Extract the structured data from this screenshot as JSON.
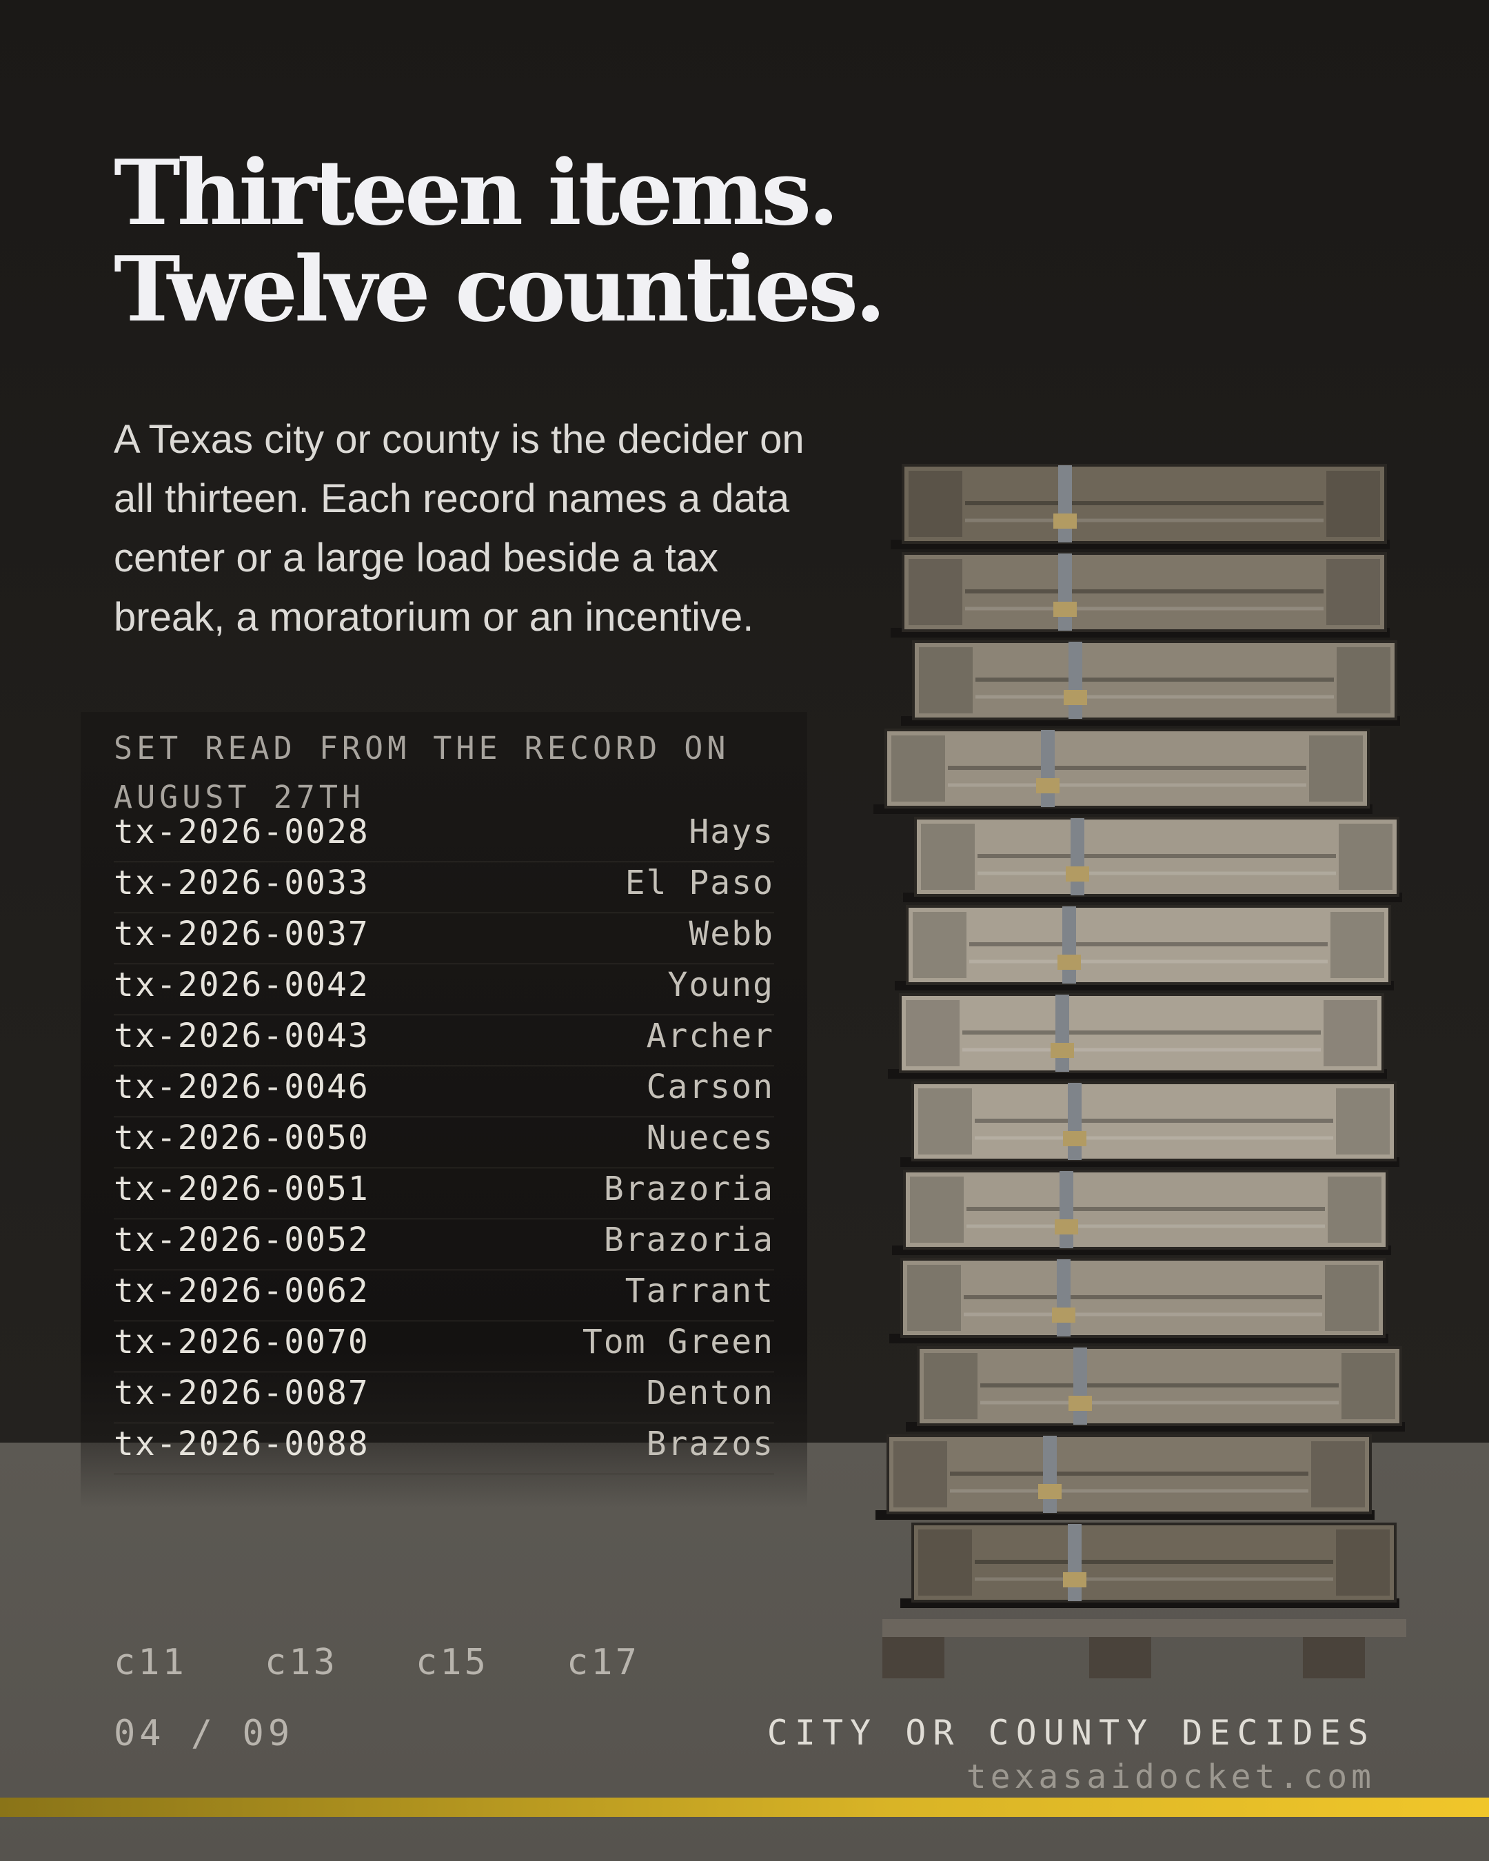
{
  "header": {
    "title_lines": [
      "Thirteen items.",
      "Twelve counties."
    ],
    "description": "A Texas city or county is the decider on all thirteen. Each record names a data center or a large load beside a tax break, a moratorium or an incentive."
  },
  "table": {
    "caption": "SET READ FROM THE RECORD ON AUGUST 27TH",
    "rows": [
      [
        "tx-2026-0028",
        "Hays"
      ],
      [
        "tx-2026-0033",
        "El Paso"
      ],
      [
        "tx-2026-0037",
        "Webb"
      ],
      [
        "tx-2026-0042",
        "Young"
      ],
      [
        "tx-2026-0043",
        "Archer"
      ],
      [
        "tx-2026-0046",
        "Carson"
      ],
      [
        "tx-2026-0050",
        "Nueces"
      ],
      [
        "tx-2026-0051",
        "Brazoria"
      ],
      [
        "tx-2026-0052",
        "Brazoria"
      ],
      [
        "tx-2026-0062",
        "Tarrant"
      ],
      [
        "tx-2026-0070",
        "Tom Green"
      ],
      [
        "tx-2026-0087",
        "Denton"
      ],
      [
        "tx-2026-0088",
        "Brazos"
      ]
    ]
  },
  "codes": [
    "c11",
    "c13",
    "c15",
    "c17"
  ],
  "page": "04 / 09",
  "footer": {
    "label": "CITY OR COUNTY DECIDES",
    "site": "texasaidocket.com"
  }
}
